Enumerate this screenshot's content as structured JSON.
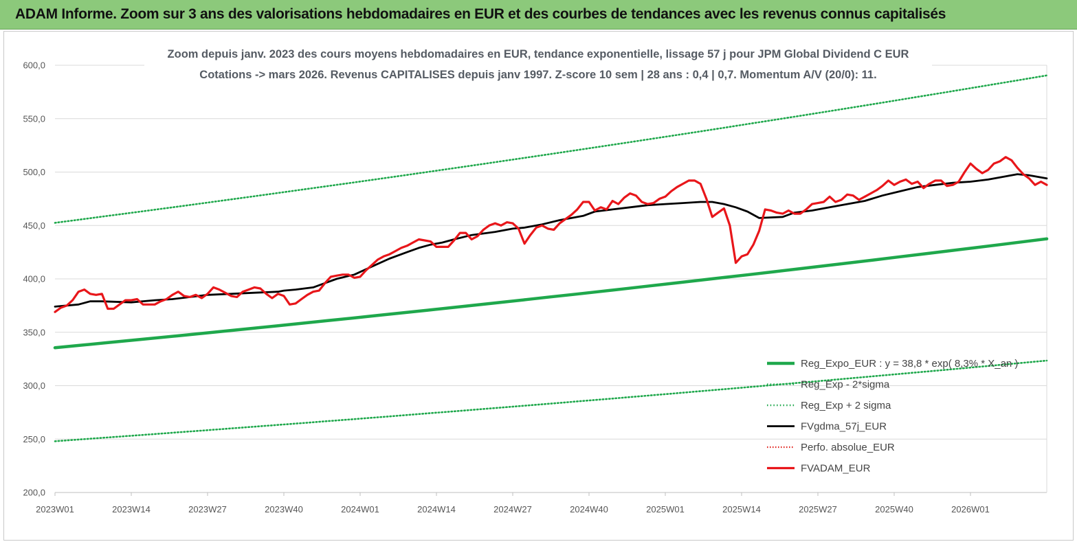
{
  "header": {
    "title": "ADAM Informe. Zoom sur 3 ans des valorisations hebdomadaires en EUR et des courbes de tendances avec les revenus connus capitalisés"
  },
  "chart_data": {
    "type": "line",
    "title_lines": [
      "Zoom depuis janv. 2023 des cours moyens hebdomadaires en EUR, tendance exponentielle, lissage 57 j pour JPM Global Dividend C EUR",
      "Cotations -> mars 2026. Revenus CAPITALISES depuis janv 1997. Z-score 10 sem | 28 ans : 0,4 | 0,7. Momentum A/V (20/0): 11."
    ],
    "xlabel": "",
    "ylabel": "",
    "ylim": [
      200,
      600
    ],
    "yticks": [
      "200,0",
      "250,0",
      "300,0",
      "350,0",
      "400,0",
      "450,0",
      "500,0",
      "550,0",
      "600,0"
    ],
    "xticks": [
      "2023W01",
      "2023W14",
      "2023W27",
      "2023W40",
      "2024W01",
      "2024W14",
      "2024W27",
      "2024W40",
      "2025W01",
      "2025W14",
      "2025W27",
      "2025W40",
      "2026W01"
    ],
    "x_week_range": [
      0,
      169
    ],
    "grid": "horizontal",
    "legend_position": "lower-right",
    "colors": {
      "reg_expo": "#1fa84c",
      "band": "#1fa84c",
      "fvgdma": "#000000",
      "perfo": "#e0201b",
      "fvadam": "#e8161a",
      "gridline": "#d9d9d9",
      "banner": "#8cc97b"
    },
    "series": [
      {
        "name": "Reg_Expo_EUR : y = 38,8 * exp( 8,3% * X_an )",
        "style": "solid-thick",
        "x": [
          0,
          169
        ],
        "y": [
          335.5,
          437.5
        ],
        "interpolation": "exponential"
      },
      {
        "name": "Reg_Exp - 2*sigma",
        "style": "dotted",
        "x": [
          0,
          169
        ],
        "y": [
          248,
          323.5
        ],
        "interpolation": "exponential"
      },
      {
        "name": "Reg_Exp + 2 sigma",
        "style": "dotted",
        "x": [
          0,
          169
        ],
        "y": [
          452.5,
          590.5
        ],
        "interpolation": "exponential"
      },
      {
        "name": "FVgdma_57j_EUR",
        "style": "solid",
        "x": [
          0,
          4,
          6,
          8,
          13,
          17,
          20,
          26,
          30,
          34,
          38,
          39,
          41,
          44,
          46,
          48,
          51,
          53,
          55,
          57,
          60,
          62,
          64,
          66,
          68,
          71,
          75,
          78,
          80,
          83,
          86,
          90,
          92,
          95,
          98,
          101,
          104,
          107,
          110,
          112,
          114,
          116,
          118,
          120,
          124,
          126,
          129,
          132,
          135,
          138,
          141,
          144,
          147,
          150,
          153,
          156,
          159,
          162,
          164,
          166,
          169
        ],
        "y": [
          374,
          376,
          379,
          379,
          378,
          380,
          381,
          385,
          386,
          387,
          388,
          389,
          390,
          392,
          396,
          400,
          404,
          409,
          414,
          419,
          425,
          429,
          432,
          434,
          437,
          441,
          444,
          447,
          448,
          451,
          455,
          459,
          463,
          465,
          467,
          469,
          470,
          471,
          472,
          472,
          470,
          467,
          463,
          457,
          458,
          462,
          464,
          467,
          470,
          473,
          478,
          482,
          486,
          488,
          490,
          491,
          493,
          496,
          498,
          497,
          494
        ]
      },
      {
        "name": "Perfo. absolue_EUR",
        "style": "dotted",
        "x": [],
        "y": []
      },
      {
        "name": "FVADAM_EUR",
        "style": "solid-thick",
        "x": [
          0,
          1,
          2,
          3,
          4,
          5,
          6,
          7,
          8,
          9,
          10,
          11,
          12,
          13,
          14,
          15,
          16,
          17,
          18,
          19,
          20,
          21,
          22,
          23,
          24,
          25,
          26,
          27,
          28,
          29,
          30,
          31,
          32,
          33,
          34,
          35,
          36,
          37,
          38,
          39,
          40,
          41,
          42,
          43,
          44,
          45,
          46,
          47,
          48,
          49,
          50,
          51,
          52,
          53,
          54,
          55,
          56,
          57,
          58,
          59,
          60,
          61,
          62,
          63,
          64,
          65,
          66,
          67,
          68,
          69,
          70,
          71,
          72,
          73,
          74,
          75,
          76,
          77,
          78,
          79,
          80,
          81,
          82,
          83,
          84,
          85,
          86,
          87,
          88,
          89,
          90,
          91,
          92,
          93,
          94,
          95,
          96,
          97,
          98,
          99,
          100,
          101,
          102,
          103,
          104,
          105,
          106,
          107,
          108,
          109,
          110,
          111,
          112,
          113,
          114,
          115,
          116,
          117,
          118,
          119,
          120,
          121,
          122,
          123,
          124,
          125,
          126,
          127,
          128,
          129,
          130,
          131,
          132,
          133,
          134,
          135,
          136,
          137,
          138,
          139,
          140,
          141,
          142,
          143,
          144,
          145,
          146,
          147,
          148,
          149,
          150,
          151,
          152,
          153,
          154,
          155,
          156,
          157,
          158,
          159,
          160,
          161,
          162,
          163,
          164,
          165,
          166,
          167,
          168,
          169
        ],
        "y": [
          369,
          373,
          375,
          380,
          388,
          390,
          386,
          385,
          386,
          372,
          372,
          376,
          380,
          380,
          381,
          376,
          376,
          376,
          379,
          381,
          385,
          388,
          384,
          383,
          385,
          382,
          386,
          392,
          390,
          387,
          384,
          383,
          388,
          390,
          392,
          391,
          386,
          382,
          386,
          384,
          376,
          377,
          381,
          385,
          388,
          389,
          396,
          402,
          403,
          404,
          404,
          401,
          402,
          408,
          413,
          418,
          421,
          423,
          426,
          429,
          431,
          434,
          437,
          436,
          435,
          430,
          430,
          430,
          436,
          443,
          443,
          437,
          440,
          446,
          450,
          452,
          450,
          453,
          452,
          447,
          433,
          441,
          448,
          450,
          447,
          446,
          452,
          456,
          460,
          465,
          472,
          472,
          464,
          467,
          465,
          473,
          470,
          476,
          480,
          478,
          472,
          470,
          471,
          475,
          477,
          482,
          486,
          489,
          492,
          492,
          489,
          475,
          458,
          462,
          466,
          450,
          415,
          421,
          423,
          432,
          445,
          465,
          464,
          462,
          461,
          464,
          461,
          461,
          465,
          470,
          471,
          472,
          477,
          472,
          474,
          479,
          478,
          474,
          477,
          480,
          483,
          487,
          492,
          488,
          491,
          493,
          489,
          491,
          485,
          489,
          492,
          492,
          487,
          488,
          491,
          500,
          508,
          503,
          499,
          502,
          508,
          510,
          514,
          511,
          504,
          498,
          494,
          488,
          491,
          488
        ]
      }
    ]
  }
}
